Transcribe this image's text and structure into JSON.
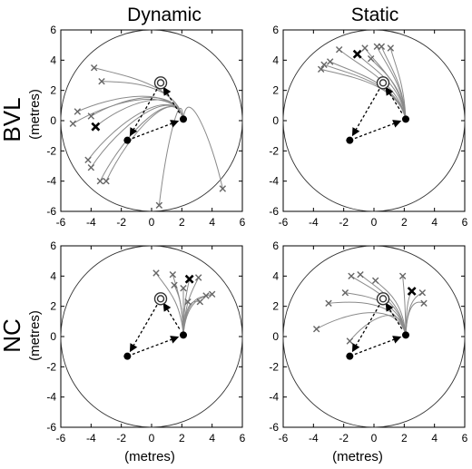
{
  "figure": {
    "columns": [
      "Dynamic",
      "Static"
    ],
    "rows": [
      {
        "label": "BVL",
        "sublabel": "(metres)"
      },
      {
        "label": "NC",
        "sublabel": "(metres)"
      }
    ],
    "xlabel": "(metres)"
  },
  "chart_data": [
    {
      "type": "scatter",
      "panel": "BVL-Dynamic",
      "title": "",
      "xlim": [
        -6,
        6
      ],
      "ylim": [
        -6,
        6
      ],
      "xticks": [
        -6,
        -4,
        -2,
        0,
        2,
        4,
        6
      ],
      "yticks": [
        -6,
        -4,
        -2,
        0,
        2,
        4,
        6
      ],
      "arena_radius": 6,
      "landmarks": [
        {
          "x": -1.6,
          "y": -1.3
        },
        {
          "x": 2.1,
          "y": 0.1
        }
      ],
      "target": {
        "x": 0.6,
        "y": 2.5
      },
      "outbound_path": [
        [
          -1.6,
          -1.3
        ],
        [
          2.1,
          0.1
        ],
        [
          0.6,
          2.5
        ],
        [
          -1.6,
          -1.3
        ]
      ],
      "endpoints": [
        [
          -3.8,
          3.5
        ],
        [
          -3.3,
          2.6
        ],
        [
          -4.9,
          0.6
        ],
        [
          -5.2,
          -0.2
        ],
        [
          -4.0,
          0.3
        ],
        [
          -4.2,
          -2.6
        ],
        [
          -4.0,
          -3.1
        ],
        [
          -3.0,
          -4.0
        ],
        [
          -3.4,
          -4.0
        ],
        [
          0.5,
          -5.6
        ],
        [
          4.7,
          -4.5
        ]
      ],
      "highlight": {
        "x": -3.7,
        "y": -0.4
      },
      "grid": false
    },
    {
      "type": "scatter",
      "panel": "BVL-Static",
      "title": "",
      "xlim": [
        -6,
        6
      ],
      "ylim": [
        -6,
        6
      ],
      "xticks": [
        -6,
        -4,
        -2,
        0,
        2,
        4,
        6
      ],
      "yticks": [
        -6,
        -4,
        -2,
        0,
        2,
        4,
        6
      ],
      "arena_radius": 6,
      "landmarks": [
        {
          "x": -1.6,
          "y": -1.3
        },
        {
          "x": 2.1,
          "y": 0.1
        }
      ],
      "target": {
        "x": 0.6,
        "y": 2.5
      },
      "outbound_path": [
        [
          -1.6,
          -1.3
        ],
        [
          2.1,
          0.1
        ],
        [
          0.6,
          2.5
        ],
        [
          -1.6,
          -1.3
        ]
      ],
      "endpoints": [
        [
          -2.3,
          4.7
        ],
        [
          -2.9,
          3.9
        ],
        [
          -3.3,
          3.7
        ],
        [
          -3.5,
          3.4
        ],
        [
          -0.6,
          4.8
        ],
        [
          0.2,
          4.9
        ],
        [
          0.5,
          4.9
        ],
        [
          1.1,
          4.8
        ],
        [
          -0.2,
          4.1
        ]
      ],
      "highlight": {
        "x": -1.1,
        "y": 4.4
      },
      "grid": false
    },
    {
      "type": "scatter",
      "panel": "NC-Dynamic",
      "title": "",
      "xlim": [
        -6,
        6
      ],
      "ylim": [
        -6,
        6
      ],
      "xticks": [
        -6,
        -4,
        -2,
        0,
        2,
        4,
        6
      ],
      "yticks": [
        -6,
        -4,
        -2,
        0,
        2,
        4,
        6
      ],
      "arena_radius": 6,
      "landmarks": [
        {
          "x": -1.6,
          "y": -1.3
        },
        {
          "x": 2.1,
          "y": 0.1
        }
      ],
      "target": {
        "x": 0.6,
        "y": 2.5
      },
      "outbound_path": [
        [
          -1.6,
          -1.3
        ],
        [
          2.1,
          0.1
        ],
        [
          0.6,
          2.5
        ],
        [
          -1.6,
          -1.3
        ]
      ],
      "endpoints": [
        [
          0.3,
          4.2
        ],
        [
          1.4,
          4.1
        ],
        [
          1.5,
          3.4
        ],
        [
          2.1,
          3.2
        ],
        [
          3.1,
          3.9
        ],
        [
          3.6,
          2.7
        ],
        [
          4.0,
          2.8
        ],
        [
          2.4,
          2.3
        ],
        [
          3.2,
          2.3
        ]
      ],
      "highlight": {
        "x": 2.5,
        "y": 3.8
      },
      "grid": false
    },
    {
      "type": "scatter",
      "panel": "NC-Static",
      "title": "",
      "xlim": [
        -6,
        6
      ],
      "ylim": [
        -6,
        6
      ],
      "xticks": [
        -6,
        -4,
        -2,
        0,
        2,
        4,
        6
      ],
      "yticks": [
        -6,
        -4,
        -2,
        0,
        2,
        4,
        6
      ],
      "arena_radius": 6,
      "landmarks": [
        {
          "x": -1.6,
          "y": -1.3
        },
        {
          "x": 2.1,
          "y": 0.1
        }
      ],
      "target": {
        "x": 0.6,
        "y": 2.5
      },
      "outbound_path": [
        [
          -1.6,
          -1.3
        ],
        [
          2.1,
          0.1
        ],
        [
          0.6,
          2.5
        ],
        [
          -1.6,
          -1.3
        ]
      ],
      "endpoints": [
        [
          -1.5,
          4.0
        ],
        [
          -0.9,
          4.1
        ],
        [
          0.1,
          3.7
        ],
        [
          1.9,
          4.0
        ],
        [
          -3.0,
          2.2
        ],
        [
          -1.9,
          2.9
        ],
        [
          -3.8,
          0.5
        ],
        [
          -1.6,
          -0.3
        ],
        [
          3.2,
          2.9
        ],
        [
          3.3,
          2.2
        ]
      ],
      "highlight": {
        "x": 2.5,
        "y": 3.0
      },
      "grid": false
    }
  ]
}
